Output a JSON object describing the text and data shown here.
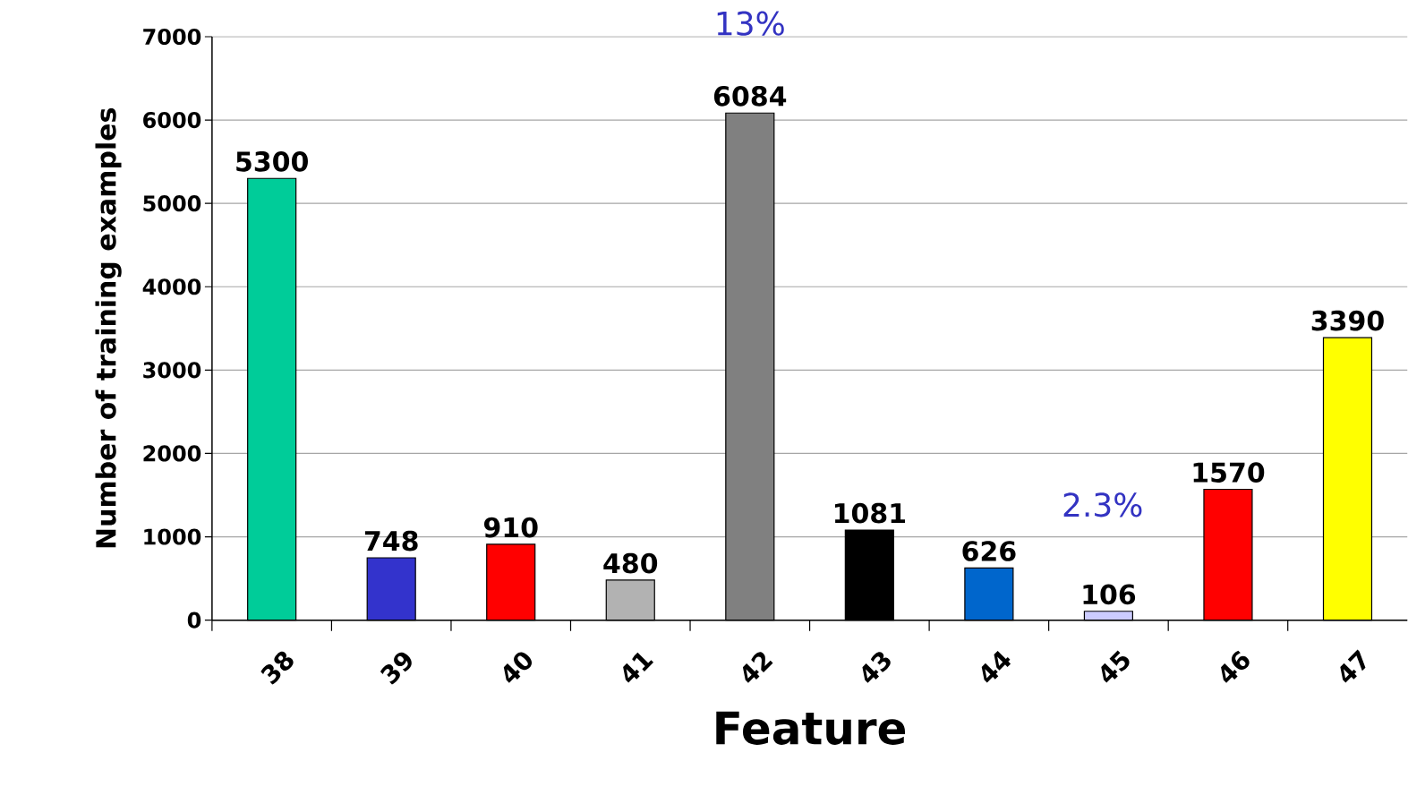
{
  "chart_data": {
    "type": "bar",
    "xlabel": "Feature",
    "ylabel": "Number of training examples",
    "categories": [
      "38",
      "39",
      "40",
      "41",
      "42",
      "43",
      "44",
      "45",
      "46",
      "47"
    ],
    "values": [
      5300,
      748,
      910,
      480,
      6084,
      1081,
      626,
      106,
      1570,
      3390
    ],
    "colors": [
      "#00cc99",
      "#3333cc",
      "#ff0000",
      "#b2b2b2",
      "#808080",
      "#000000",
      "#0066cc",
      "#ccccff",
      "#ff0000",
      "#ffff00"
    ],
    "ylim": [
      0,
      7000
    ],
    "yticks": [
      0,
      1000,
      2000,
      3000,
      4000,
      5000,
      6000,
      7000
    ],
    "grid": "y",
    "data_labels": true,
    "annotations": [
      "13%",
      "2.3%"
    ]
  }
}
